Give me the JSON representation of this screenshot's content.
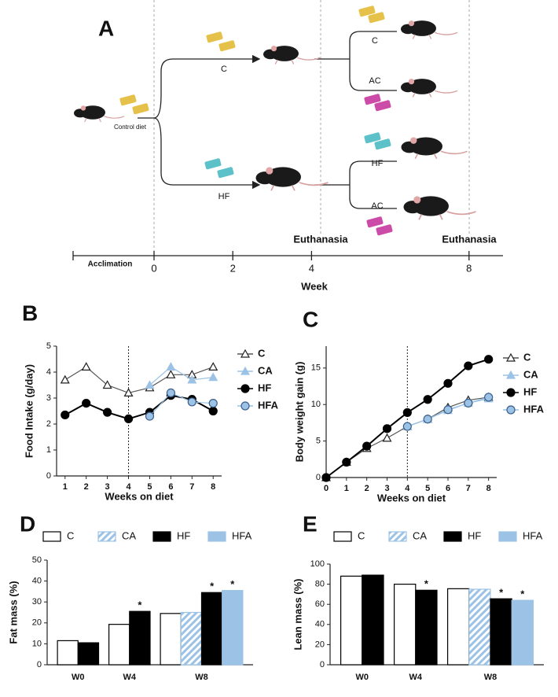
{
  "diagram": {
    "label": "A",
    "start_label": "Control diet",
    "arms": [
      "C",
      "HF"
    ],
    "subarms": [
      "C",
      "AC",
      "HF",
      "AC"
    ],
    "events": [
      "Euthanasia",
      "Euthanasia"
    ],
    "period": "Acclimation",
    "timeline": {
      "title": "Week",
      "ticks": [
        0,
        2,
        4,
        8
      ]
    }
  },
  "chart_data": [
    {
      "type": "line",
      "label": "B",
      "y_label": "Food Intake (g/day)",
      "x_label": "Weeks on diet",
      "x": [
        1,
        2,
        3,
        4,
        5,
        6,
        7,
        8
      ],
      "xlim": [
        0.6,
        8.4
      ],
      "xticks": [
        1,
        2,
        3,
        4,
        5,
        6,
        7,
        8
      ],
      "ylim": [
        0,
        5
      ],
      "yticks": [
        0,
        1,
        2,
        3,
        4,
        5
      ],
      "vline": 4,
      "series": [
        {
          "name": "C",
          "color": "#555555",
          "marker": "open-triangle",
          "values": [
            3.7,
            4.2,
            3.5,
            3.2,
            3.4,
            3.9,
            3.9,
            4.2
          ]
        },
        {
          "name": "CA",
          "color": "#9cc3e6",
          "marker": "triangle",
          "values": [
            null,
            null,
            null,
            null,
            3.5,
            4.2,
            3.7,
            3.8
          ]
        },
        {
          "name": "HF",
          "color": "#000000",
          "marker": "circle",
          "values": [
            2.35,
            2.8,
            2.45,
            2.2,
            2.45,
            3.1,
            2.95,
            2.5
          ]
        },
        {
          "name": "HFA",
          "color": "#9cc3e6",
          "marker": "outlined-circle",
          "values": [
            null,
            null,
            null,
            null,
            2.3,
            3.2,
            2.85,
            2.8
          ]
        }
      ]
    },
    {
      "type": "line",
      "label": "C",
      "y_label": "Body weight gain (g)",
      "x_label": "Weeks on diet",
      "x": [
        0,
        1,
        2,
        3,
        4,
        5,
        6,
        7,
        8
      ],
      "xlim": [
        0,
        8.4
      ],
      "xticks": [
        0,
        1,
        2,
        3,
        4,
        5,
        6,
        7,
        8
      ],
      "ylim": [
        0,
        18
      ],
      "yticks": [
        0,
        5,
        10,
        15
      ],
      "vline": 4,
      "series": [
        {
          "name": "C",
          "color": "#555555",
          "marker": "open-triangle",
          "values": [
            0,
            2.1,
            4.0,
            5.4,
            7.0,
            8.0,
            9.6,
            10.6,
            11.0
          ]
        },
        {
          "name": "CA",
          "color": "#9cc3e6",
          "marker": "triangle",
          "values": [
            null,
            null,
            null,
            null,
            7.0,
            8.0,
            9.2,
            10.2,
            10.8
          ]
        },
        {
          "name": "HF",
          "color": "#000000",
          "marker": "circle",
          "values": [
            0,
            2.1,
            4.3,
            6.7,
            8.9,
            10.7,
            12.9,
            15.3,
            16.2
          ]
        },
        {
          "name": "HFA",
          "color": "#9cc3e6",
          "marker": "outlined-circle",
          "values": [
            null,
            null,
            null,
            null,
            7.0,
            8.0,
            9.3,
            10.2,
            11.0
          ]
        }
      ]
    },
    {
      "type": "bar",
      "label": "D",
      "y_label": "Fat mass (%)",
      "categories": [
        "W0",
        "W4",
        "W8"
      ],
      "ylim": [
        0,
        50
      ],
      "yticks": [
        0,
        10,
        20,
        30,
        40,
        50
      ],
      "series": [
        {
          "name": "C",
          "color": "#ffffff",
          "values": [
            11.5,
            19.3,
            24.5
          ],
          "labels": [
            null,
            null,
            null
          ]
        },
        {
          "name": "CA",
          "color": "#9cc3e6",
          "pattern": "hatch",
          "values": [
            null,
            null,
            25
          ],
          "labels": [
            null,
            null,
            null
          ]
        },
        {
          "name": "HF",
          "color": "#000000",
          "values": [
            10.5,
            25.5,
            34.5
          ],
          "labels": [
            null,
            "*",
            "*"
          ]
        },
        {
          "name": "HFA",
          "color": "#9cc3e6",
          "values": [
            null,
            null,
            35.5
          ],
          "labels": [
            null,
            null,
            "*"
          ]
        }
      ]
    },
    {
      "type": "bar",
      "label": "E",
      "y_label": "Lean mass (%)",
      "categories": [
        "W0",
        "W4",
        "W8"
      ],
      "ylim": [
        0,
        100
      ],
      "yticks": [
        0,
        20,
        40,
        60,
        80,
        100
      ],
      "series": [
        {
          "name": "C",
          "color": "#ffffff",
          "values": [
            88,
            80,
            75.5
          ],
          "labels": [
            null,
            null,
            null
          ]
        },
        {
          "name": "CA",
          "color": "#9cc3e6",
          "pattern": "hatch",
          "values": [
            null,
            null,
            75
          ],
          "labels": [
            null,
            null,
            null
          ]
        },
        {
          "name": "HF",
          "color": "#000000",
          "values": [
            89,
            74,
            65.5
          ],
          "labels": [
            null,
            "*",
            "*"
          ]
        },
        {
          "name": "HFA",
          "color": "#9cc3e6",
          "values": [
            null,
            null,
            64
          ],
          "labels": [
            null,
            null,
            "*"
          ]
        }
      ]
    }
  ]
}
